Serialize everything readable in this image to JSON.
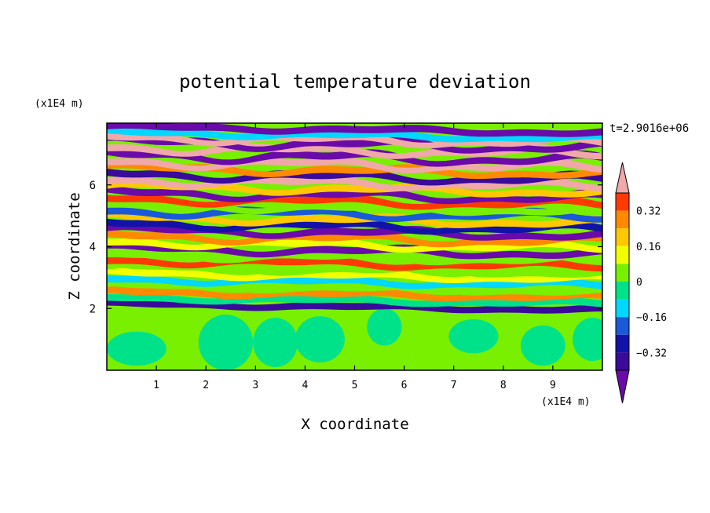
{
  "chart_data": {
    "type": "heatmap",
    "title": "potential temperature deviation",
    "xlabel": "X coordinate",
    "ylabel": "Z coordinate",
    "x_unit": "(x1E4 m)",
    "y_unit": "(x1E4 m)",
    "time_label": "t=2.9016e+06",
    "xlim": [
      0,
      10
    ],
    "ylim": [
      0,
      8
    ],
    "x_ticks": [
      "1",
      "2",
      "3",
      "4",
      "5",
      "6",
      "7",
      "8",
      "9"
    ],
    "y_ticks": [
      "2",
      "4",
      "6"
    ],
    "x_tick_values": [
      1,
      2,
      3,
      4,
      5,
      6,
      7,
      8,
      9
    ],
    "y_tick_values": [
      2,
      4,
      6
    ],
    "colorbar": {
      "levels": [
        -0.48,
        -0.4,
        -0.32,
        -0.24,
        -0.16,
        -0.08,
        0,
        0.08,
        0.16,
        0.24,
        0.32,
        0.4
      ],
      "colors": [
        "#6a0aa8",
        "#3a0a9a",
        "#1212a8",
        "#1a5ad8",
        "#00d8ff",
        "#00e28a",
        "#78f000",
        "#f2ff00",
        "#ffc800",
        "#ff8a00",
        "#ff3a00",
        "#f0a8a8"
      ],
      "tick_labels": [
        "0.32",
        "0.16",
        "0",
        "−0.16",
        "−0.32"
      ],
      "tick_values": [
        0.32,
        0.16,
        0,
        -0.16,
        -0.32
      ]
    },
    "bands": [
      {
        "z": 7.78,
        "value": -0.48,
        "amp": 0.06,
        "phase": 0.3
      },
      {
        "z": 7.6,
        "value": -0.1,
        "amp": 0.07,
        "phase": 1.2
      },
      {
        "z": 7.45,
        "value": 0.44,
        "amp": 0.12,
        "phase": 2.1
      },
      {
        "z": 7.3,
        "value": -0.48,
        "amp": 0.13,
        "phase": 0.8
      },
      {
        "z": 7.1,
        "value": 0.44,
        "amp": 0.12,
        "phase": 3.0
      },
      {
        "z": 6.88,
        "value": -0.48,
        "amp": 0.14,
        "phase": 1.7
      },
      {
        "z": 6.65,
        "value": 0.44,
        "amp": 0.13,
        "phase": 2.6
      },
      {
        "z": 6.45,
        "value": 0.3,
        "amp": 0.1,
        "phase": 0.5
      },
      {
        "z": 6.25,
        "value": -0.4,
        "amp": 0.12,
        "phase": 1.9
      },
      {
        "z": 6.05,
        "value": 0.44,
        "amp": 0.11,
        "phase": 2.8
      },
      {
        "z": 5.85,
        "value": 0.2,
        "amp": 0.1,
        "phase": 0.2
      },
      {
        "z": 5.65,
        "value": -0.45,
        "amp": 0.12,
        "phase": 1.4
      },
      {
        "z": 5.45,
        "value": 0.36,
        "amp": 0.11,
        "phase": 2.3
      },
      {
        "z": 5.25,
        "value": 0.05,
        "amp": 0.1,
        "phase": 0.9
      },
      {
        "z": 5.05,
        "value": -0.2,
        "amp": 0.11,
        "phase": 3.1
      },
      {
        "z": 4.85,
        "value": 0.18,
        "amp": 0.1,
        "phase": 1.1
      },
      {
        "z": 4.65,
        "value": -0.3,
        "amp": 0.11,
        "phase": 2.0
      },
      {
        "z": 4.45,
        "value": -0.45,
        "amp": 0.1,
        "phase": 0.4
      },
      {
        "z": 4.25,
        "value": 0.28,
        "amp": 0.12,
        "phase": 1.6
      },
      {
        "z": 4.05,
        "value": 0.1,
        "amp": 0.1,
        "phase": 2.7
      },
      {
        "z": 3.85,
        "value": -0.45,
        "amp": 0.1,
        "phase": 0.7
      },
      {
        "z": 3.65,
        "value": 0.03,
        "amp": 0.1,
        "phase": 1.8
      },
      {
        "z": 3.45,
        "value": 0.32,
        "amp": 0.09,
        "phase": 2.9
      },
      {
        "z": 3.25,
        "value": 0.04,
        "amp": 0.09,
        "phase": 0.1
      },
      {
        "z": 3.05,
        "value": 0.1,
        "amp": 0.08,
        "phase": 1.3
      },
      {
        "z": 2.85,
        "value": -0.12,
        "amp": 0.08,
        "phase": 2.4
      },
      {
        "z": 2.65,
        "value": 0.03,
        "amp": 0.07,
        "phase": 0.6
      },
      {
        "z": 2.45,
        "value": 0.26,
        "amp": 0.07,
        "phase": 1.5
      },
      {
        "z": 2.25,
        "value": -0.05,
        "amp": 0.06,
        "phase": 2.2
      },
      {
        "z": 2.05,
        "value": -0.4,
        "amp": 0.05,
        "phase": 0.9
      }
    ],
    "lower_layer": {
      "z_top": 2.0,
      "value": 0.0,
      "blob_value": -0.04
    }
  }
}
